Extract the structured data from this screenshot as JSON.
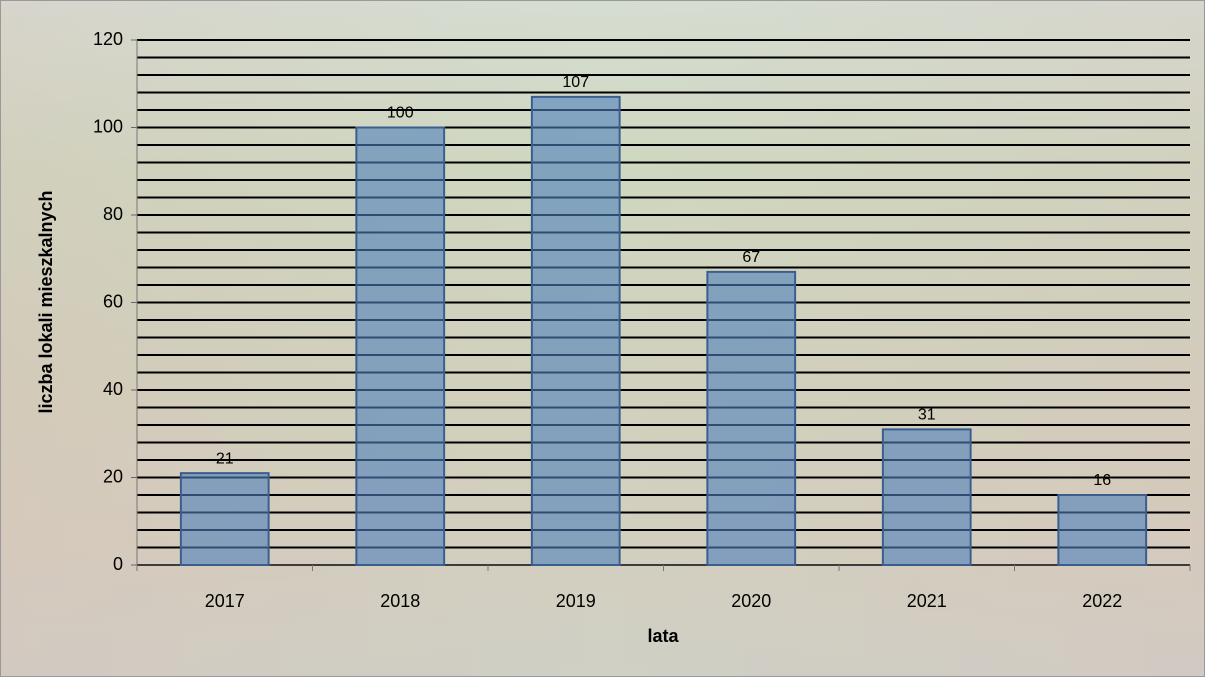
{
  "chart_data": {
    "type": "bar",
    "x_label": "lata",
    "y_label": "liczba lokali mieszkalnych",
    "categories": [
      "2017",
      "2018",
      "2019",
      "2020",
      "2021",
      "2022"
    ],
    "values": [
      21,
      100,
      107,
      67,
      31,
      16
    ],
    "color": "#4f81bd",
    "ylim": [
      0,
      120
    ],
    "yticks": [
      0,
      20,
      40,
      60,
      80,
      100,
      120
    ],
    "y_minor_ticks": [
      4,
      8,
      12,
      16,
      24,
      28,
      32,
      36,
      44,
      48,
      52,
      56,
      64,
      68,
      72,
      76,
      84,
      88,
      92,
      96,
      104,
      108,
      112,
      116
    ],
    "grid": true
  }
}
